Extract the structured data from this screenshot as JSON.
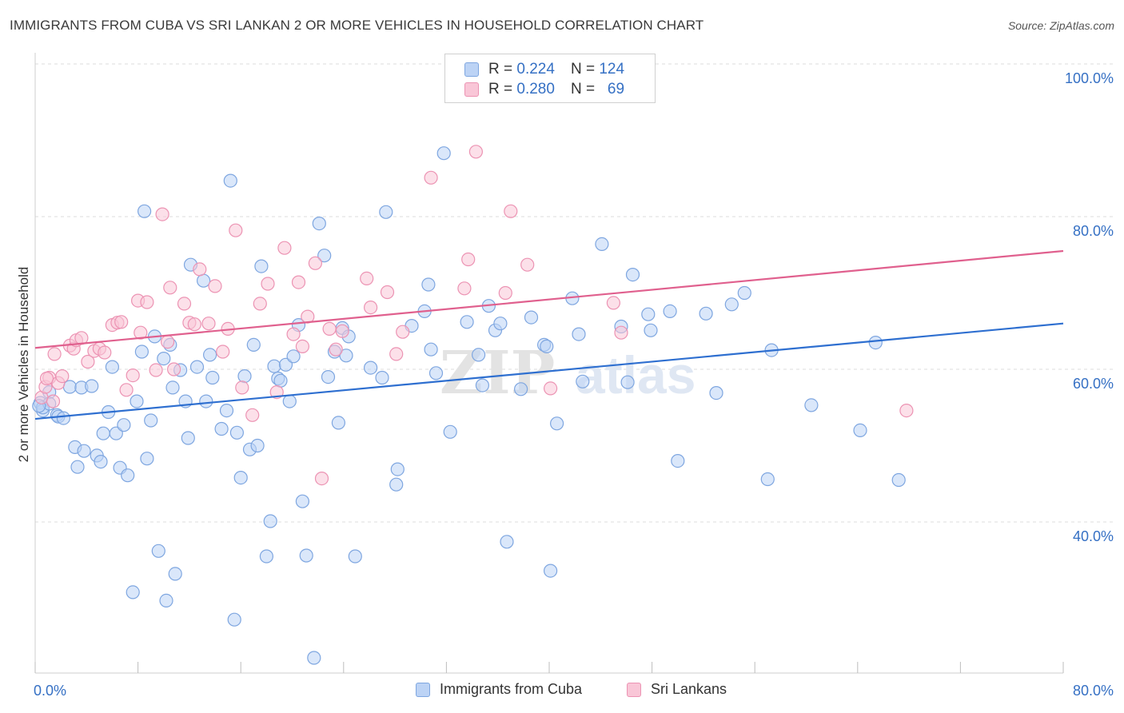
{
  "header": {
    "title": "IMMIGRANTS FROM CUBA VS SRI LANKAN 2 OR MORE VEHICLES IN HOUSEHOLD CORRELATION CHART",
    "source": "Source: ZipAtlas.com"
  },
  "legend_top": {
    "rows": [
      {
        "r_label": "R =",
        "r_value": "0.224",
        "n_label": "N =",
        "n_value": "124"
      },
      {
        "r_label": "R =",
        "r_value": "0.280",
        "n_label": "N =",
        "n_value": "69"
      }
    ]
  },
  "legend_bottom": {
    "items": [
      "Immigrants from Cuba",
      "Sri Lankans"
    ]
  },
  "colors": {
    "blue_fill": "#bcd3f5",
    "blue_stroke": "#7ea6e0",
    "blue_line": "#2e6fd0",
    "pink_fill": "#f9c6d7",
    "pink_stroke": "#ec93b3",
    "pink_line": "#e0608e",
    "tick_label": "#3570c4",
    "grid": "#dcdcdc"
  },
  "chart_data": {
    "type": "scatter",
    "ylabel": "2 or more Vehicles in Household",
    "xlabel": "",
    "xlim": [
      0,
      80
    ],
    "ylim": [
      20,
      102
    ],
    "x_tick_labels": [
      {
        "x": 0,
        "label": "0.0%"
      },
      {
        "x": 80,
        "label": "80.0%"
      }
    ],
    "y_tick_labels": [
      {
        "y": 100,
        "label": "100.0%"
      },
      {
        "y": 80,
        "label": "80.0%"
      },
      {
        "y": 60,
        "label": "60.0%"
      },
      {
        "y": 40,
        "label": "40.0%"
      }
    ],
    "grid": "horizontal dashed at 40, 60, 80, 100",
    "watermark": "ZIPatlas",
    "series": [
      {
        "name": "Immigrants from Cuba",
        "color": "blue",
        "trendline": [
          [
            0,
            53.5
          ],
          [
            80,
            66.0
          ]
        ],
        "points": [
          [
            0.4,
            55.6
          ],
          [
            0.6,
            54.6
          ],
          [
            0.6,
            55.0
          ],
          [
            1.1,
            57.0
          ],
          [
            1.7,
            54.0
          ],
          [
            1.8,
            53.8
          ],
          [
            2.2,
            53.6
          ],
          [
            2.7,
            57.7
          ],
          [
            3.1,
            49.8
          ],
          [
            3.3,
            47.2
          ],
          [
            3.6,
            57.6
          ],
          [
            3.8,
            49.3
          ],
          [
            4.4,
            57.8
          ],
          [
            4.8,
            48.7
          ],
          [
            5.1,
            47.9
          ],
          [
            5.3,
            51.6
          ],
          [
            5.7,
            54.4
          ],
          [
            6.0,
            60.3
          ],
          [
            6.3,
            51.6
          ],
          [
            6.6,
            47.1
          ],
          [
            6.9,
            52.7
          ],
          [
            7.2,
            46.1
          ],
          [
            7.6,
            30.8
          ],
          [
            7.9,
            55.8
          ],
          [
            8.3,
            62.3
          ],
          [
            8.5,
            80.7
          ],
          [
            8.7,
            48.3
          ],
          [
            9.0,
            53.3
          ],
          [
            9.3,
            64.3
          ],
          [
            9.6,
            36.2
          ],
          [
            10.0,
            61.4
          ],
          [
            10.2,
            29.7
          ],
          [
            10.5,
            63.2
          ],
          [
            10.7,
            57.6
          ],
          [
            10.9,
            33.2
          ],
          [
            11.3,
            59.9
          ],
          [
            11.7,
            55.8
          ],
          [
            11.9,
            51.0
          ],
          [
            12.1,
            73.7
          ],
          [
            12.6,
            60.3
          ],
          [
            13.1,
            71.6
          ],
          [
            13.3,
            55.8
          ],
          [
            13.6,
            61.9
          ],
          [
            13.8,
            58.9
          ],
          [
            14.5,
            52.2
          ],
          [
            14.9,
            54.6
          ],
          [
            15.2,
            84.7
          ],
          [
            15.5,
            27.2
          ],
          [
            15.7,
            51.7
          ],
          [
            16.0,
            45.8
          ],
          [
            16.3,
            59.1
          ],
          [
            16.7,
            49.5
          ],
          [
            17.0,
            63.2
          ],
          [
            17.3,
            50.0
          ],
          [
            17.6,
            73.5
          ],
          [
            18.0,
            35.5
          ],
          [
            18.3,
            40.1
          ],
          [
            18.6,
            60.4
          ],
          [
            18.9,
            58.8
          ],
          [
            19.1,
            58.5
          ],
          [
            19.5,
            60.6
          ],
          [
            19.8,
            55.8
          ],
          [
            20.1,
            61.7
          ],
          [
            20.5,
            65.8
          ],
          [
            20.8,
            42.7
          ],
          [
            21.1,
            35.6
          ],
          [
            21.7,
            22.2
          ],
          [
            22.1,
            79.1
          ],
          [
            22.5,
            74.9
          ],
          [
            22.8,
            59.0
          ],
          [
            23.3,
            62.3
          ],
          [
            23.6,
            53.0
          ],
          [
            23.9,
            65.4
          ],
          [
            24.2,
            61.8
          ],
          [
            24.4,
            64.3
          ],
          [
            24.9,
            35.5
          ],
          [
            26.1,
            60.2
          ],
          [
            27.0,
            58.9
          ],
          [
            27.3,
            80.6
          ],
          [
            28.2,
            46.9
          ],
          [
            28.1,
            44.9
          ],
          [
            29.3,
            65.7
          ],
          [
            30.3,
            67.6
          ],
          [
            30.6,
            71.1
          ],
          [
            30.8,
            62.6
          ],
          [
            31.2,
            59.5
          ],
          [
            31.8,
            88.3
          ],
          [
            32.3,
            51.8
          ],
          [
            33.6,
            66.2
          ],
          [
            34.5,
            61.9
          ],
          [
            34.8,
            57.9
          ],
          [
            35.3,
            68.3
          ],
          [
            35.8,
            65.1
          ],
          [
            36.2,
            66.0
          ],
          [
            36.7,
            37.4
          ],
          [
            37.8,
            57.4
          ],
          [
            38.6,
            66.8
          ],
          [
            39.6,
            63.2
          ],
          [
            39.8,
            63.0
          ],
          [
            40.1,
            33.6
          ],
          [
            40.6,
            52.9
          ],
          [
            41.8,
            69.3
          ],
          [
            42.3,
            64.6
          ],
          [
            42.6,
            58.4
          ],
          [
            44.1,
            76.4
          ],
          [
            45.6,
            65.6
          ],
          [
            46.1,
            58.3
          ],
          [
            46.5,
            72.4
          ],
          [
            47.7,
            67.2
          ],
          [
            47.9,
            65.1
          ],
          [
            49.4,
            67.6
          ],
          [
            50.0,
            48.0
          ],
          [
            52.2,
            67.3
          ],
          [
            53.0,
            56.9
          ],
          [
            54.2,
            68.5
          ],
          [
            55.2,
            70.0
          ],
          [
            57.0,
            45.6
          ],
          [
            57.3,
            62.5
          ],
          [
            60.4,
            55.3
          ],
          [
            64.2,
            52.0
          ],
          [
            65.4,
            63.5
          ],
          [
            67.2,
            45.5
          ],
          [
            1.1,
            55.5
          ],
          [
            0.3,
            55.2
          ]
        ]
      },
      {
        "name": "Sri Lankans",
        "color": "pink",
        "trendline": [
          [
            0,
            62.8
          ],
          [
            80,
            75.5
          ]
        ],
        "points": [
          [
            0.5,
            56.3
          ],
          [
            0.8,
            57.7
          ],
          [
            1.1,
            58.9
          ],
          [
            1.4,
            55.8
          ],
          [
            1.5,
            62.0
          ],
          [
            1.8,
            58.2
          ],
          [
            2.1,
            59.1
          ],
          [
            2.7,
            63.1
          ],
          [
            3.0,
            62.7
          ],
          [
            3.2,
            63.8
          ],
          [
            3.6,
            64.1
          ],
          [
            4.1,
            61.0
          ],
          [
            4.6,
            62.4
          ],
          [
            5.0,
            62.7
          ],
          [
            5.4,
            62.2
          ],
          [
            6.0,
            65.8
          ],
          [
            6.4,
            66.1
          ],
          [
            6.7,
            66.2
          ],
          [
            7.1,
            57.3
          ],
          [
            7.6,
            59.2
          ],
          [
            8.0,
            69.0
          ],
          [
            8.2,
            64.8
          ],
          [
            8.7,
            68.8
          ],
          [
            9.4,
            59.9
          ],
          [
            9.9,
            80.3
          ],
          [
            10.3,
            63.6
          ],
          [
            10.5,
            70.7
          ],
          [
            10.8,
            60.0
          ],
          [
            11.6,
            68.6
          ],
          [
            12.0,
            66.1
          ],
          [
            12.4,
            65.9
          ],
          [
            12.8,
            73.1
          ],
          [
            13.5,
            66.0
          ],
          [
            14.0,
            70.9
          ],
          [
            14.6,
            62.3
          ],
          [
            15.0,
            65.3
          ],
          [
            15.6,
            78.2
          ],
          [
            16.1,
            57.6
          ],
          [
            16.9,
            54.0
          ],
          [
            17.5,
            68.6
          ],
          [
            18.1,
            71.2
          ],
          [
            18.8,
            57.0
          ],
          [
            19.4,
            75.9
          ],
          [
            20.1,
            64.6
          ],
          [
            20.5,
            71.4
          ],
          [
            20.8,
            63.0
          ],
          [
            21.2,
            66.9
          ],
          [
            21.8,
            73.9
          ],
          [
            22.3,
            45.7
          ],
          [
            22.9,
            65.3
          ],
          [
            23.4,
            62.6
          ],
          [
            23.9,
            65.0
          ],
          [
            25.8,
            71.9
          ],
          [
            26.1,
            68.1
          ],
          [
            27.4,
            70.1
          ],
          [
            28.1,
            62.0
          ],
          [
            28.6,
            64.9
          ],
          [
            30.8,
            85.1
          ],
          [
            33.4,
            70.6
          ],
          [
            33.7,
            74.4
          ],
          [
            34.3,
            88.5
          ],
          [
            36.6,
            70.0
          ],
          [
            37.0,
            80.7
          ],
          [
            38.3,
            73.7
          ],
          [
            40.1,
            57.5
          ],
          [
            45.0,
            68.7
          ],
          [
            45.6,
            64.8
          ],
          [
            67.8,
            54.6
          ],
          [
            0.9,
            58.8
          ]
        ]
      }
    ]
  }
}
